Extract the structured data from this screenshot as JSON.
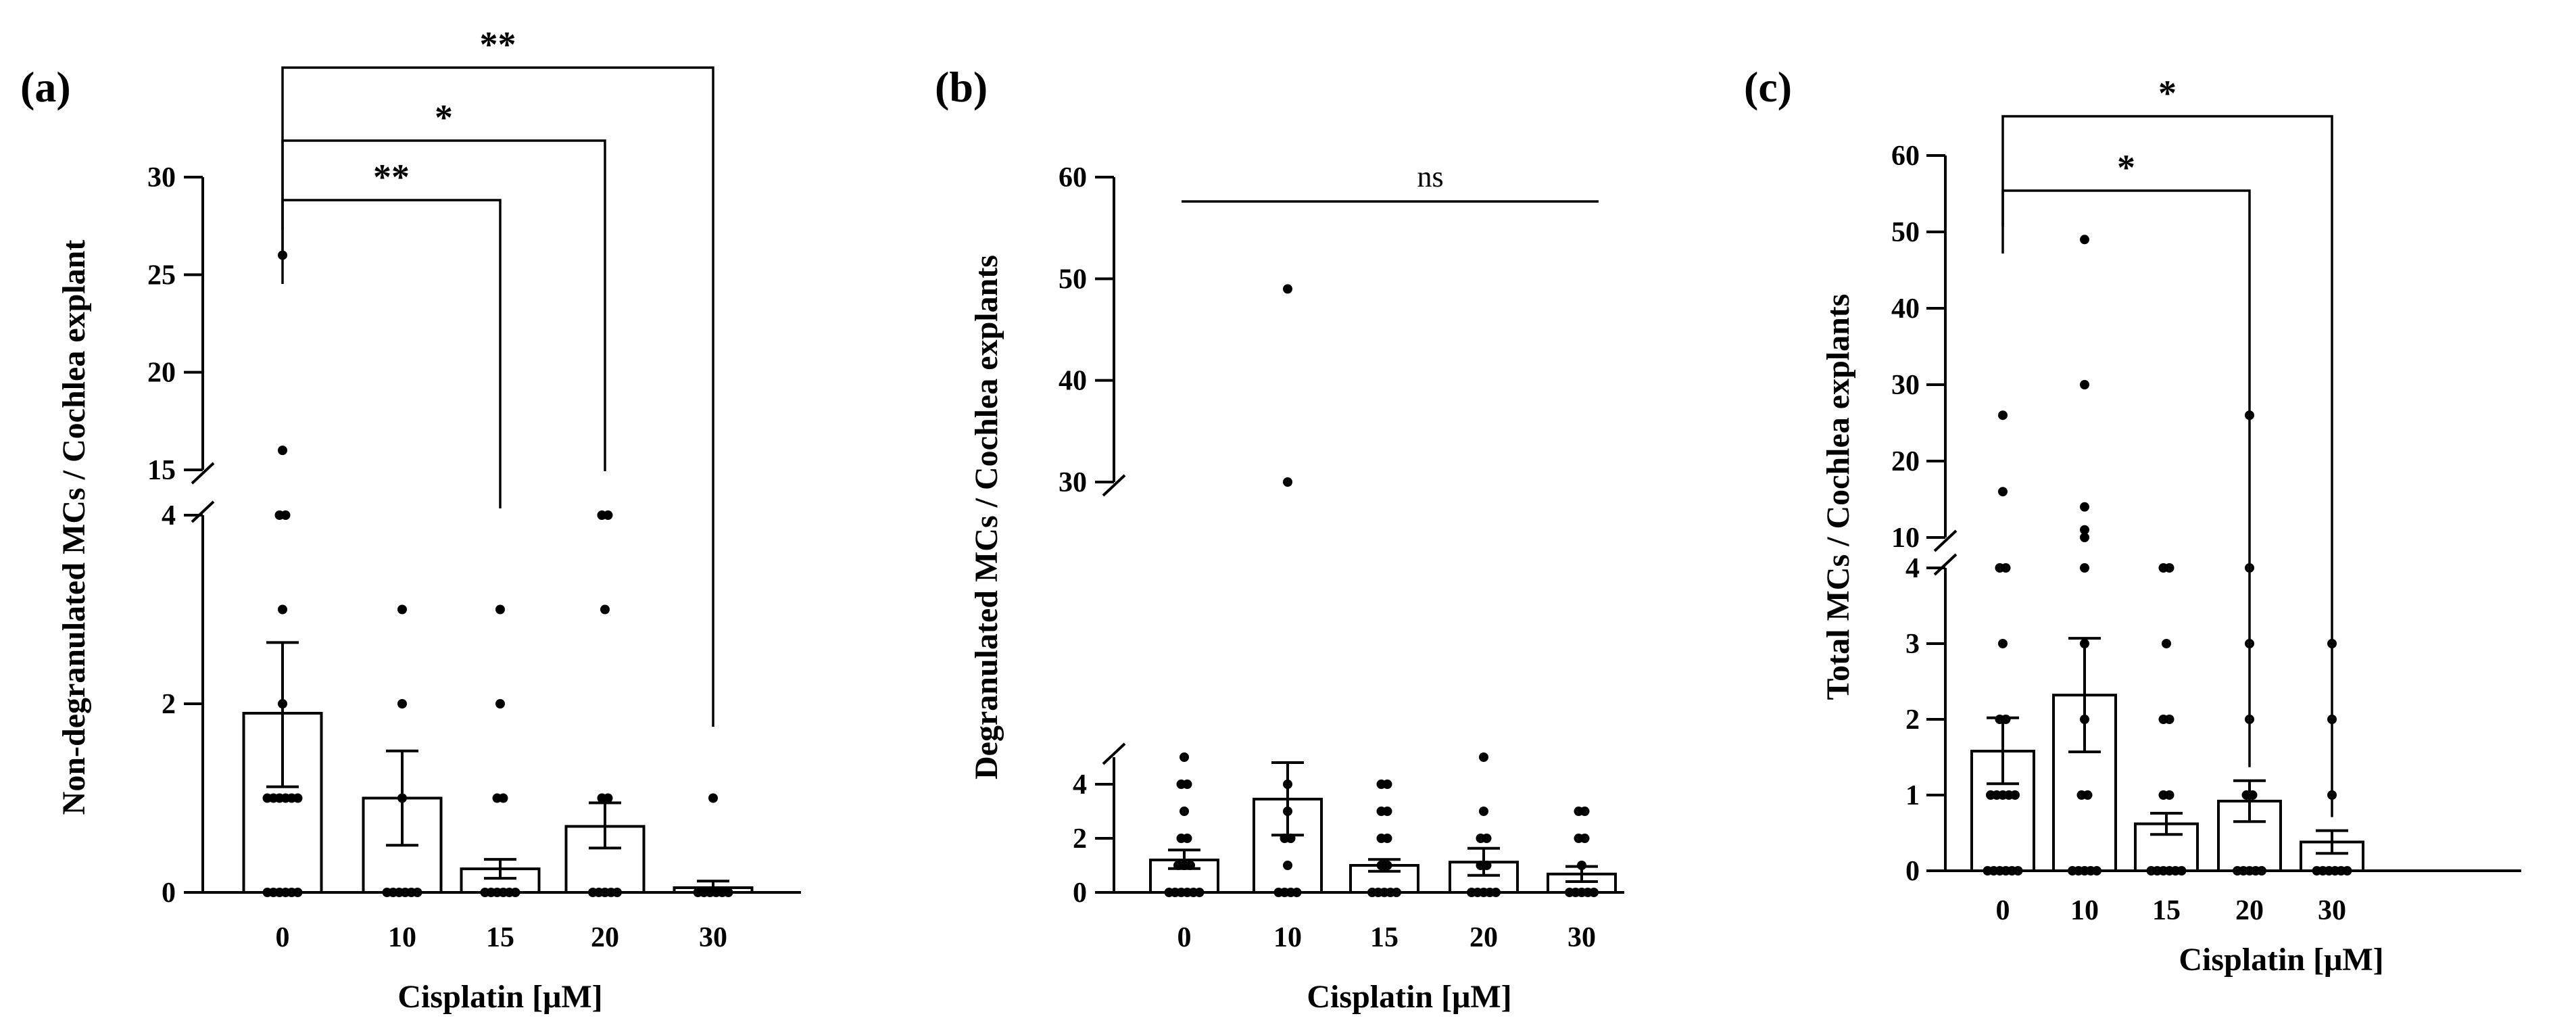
{
  "chart_data": [
    {
      "type": "bar",
      "panel_label": "(a)",
      "categories": [
        "0",
        "10",
        "15",
        "20",
        "30"
      ],
      "values": [
        1.9,
        1.0,
        0.25,
        0.7,
        0.05
      ],
      "sem_upper": [
        2.65,
        1.5,
        0.35,
        0.95,
        0.12
      ],
      "sem_lower": [
        1.12,
        0.5,
        0.15,
        0.47,
        0.0
      ],
      "points": [
        [
          0,
          0,
          0,
          0,
          0,
          0,
          1,
          1,
          1,
          1,
          1,
          1,
          2,
          3,
          4,
          4,
          16,
          26
        ],
        [
          0,
          0,
          0,
          0,
          0,
          0,
          1,
          2,
          3
        ],
        [
          0,
          0,
          0,
          0,
          0,
          0,
          1,
          1,
          2,
          3
        ],
        [
          0,
          0,
          0,
          0,
          0,
          1,
          1,
          3,
          4,
          4
        ],
        [
          0,
          0,
          0,
          0,
          0,
          0,
          1
        ]
      ],
      "xlabel": "Cisplatin [μM]",
      "ylabel": "Non-degranulated MCs / Cochlea explant",
      "y_ticks": [
        "0",
        "2",
        "4",
        "15",
        "20",
        "25",
        "30"
      ],
      "y_break": [
        4,
        15
      ],
      "ylim_low": [
        0,
        4
      ],
      "ylim_high": [
        15,
        30
      ],
      "significance": [
        {
          "from": "0",
          "to": "15",
          "label": "**"
        },
        {
          "from": "0",
          "to": "20",
          "label": "*"
        },
        {
          "from": "0",
          "to": "30",
          "label": "**"
        }
      ]
    },
    {
      "type": "bar",
      "panel_label": "(b)",
      "categories": [
        "0",
        "10",
        "15",
        "20",
        "30"
      ],
      "values": [
        1.2,
        3.45,
        1.0,
        1.12,
        0.68
      ],
      "sem_upper": [
        1.57,
        4.8,
        1.22,
        1.63,
        0.96
      ],
      "sem_lower": [
        0.88,
        2.12,
        0.78,
        0.63,
        0.4
      ],
      "points": [
        [
          0,
          0,
          0,
          0,
          0,
          0,
          1,
          1,
          1,
          2,
          2,
          3,
          4,
          4,
          5
        ],
        [
          0,
          0,
          0,
          0,
          1,
          2,
          2,
          3,
          4,
          30,
          49
        ],
        [
          0,
          0,
          0,
          0,
          0,
          1,
          1,
          2,
          2,
          3,
          3,
          4,
          4
        ],
        [
          0,
          0,
          0,
          0,
          0,
          1,
          1,
          2,
          2,
          3,
          5
        ],
        [
          0,
          0,
          0,
          0,
          0,
          1,
          2,
          2,
          3,
          3
        ]
      ],
      "xlabel": "Cisplatin [μM]",
      "ylabel": "Degranulated MCs / Cochlea explants",
      "y_ticks": [
        "0",
        "2",
        "4",
        "30",
        "40",
        "50",
        "60"
      ],
      "y_break": [
        5,
        30
      ],
      "ylim_low": [
        0,
        5
      ],
      "ylim_high": [
        30,
        60
      ],
      "significance": [
        {
          "from": "0",
          "to": "30",
          "label": "ns"
        }
      ]
    },
    {
      "type": "bar",
      "panel_label": "(c)",
      "categories": [
        "0",
        "10",
        "15",
        "20",
        "30"
      ],
      "values": [
        1.58,
        2.32,
        0.62,
        0.92,
        0.38
      ],
      "sem_upper": [
        2.02,
        3.07,
        0.76,
        1.19,
        0.53
      ],
      "sem_lower": [
        1.15,
        1.57,
        0.48,
        0.65,
        0.23
      ],
      "points": [
        [
          0,
          0,
          0,
          0,
          0,
          0,
          1,
          1,
          1,
          1,
          1,
          2,
          2,
          3,
          4,
          4,
          16,
          26
        ],
        [
          0,
          0,
          0,
          0,
          0,
          1,
          1,
          2,
          3,
          4,
          10,
          11,
          14,
          30,
          49
        ],
        [
          0,
          0,
          0,
          0,
          0,
          0,
          1,
          1,
          2,
          2,
          3,
          4,
          4
        ],
        [
          0,
          0,
          0,
          0,
          0,
          1,
          1,
          2,
          3,
          4,
          26
        ],
        [
          0,
          0,
          0,
          0,
          0,
          0,
          1,
          2,
          3
        ]
      ],
      "xlabel": "Cisplatin [μM]",
      "ylabel": "Total MCs / Cochlea explants",
      "y_ticks": [
        "0",
        "1",
        "2",
        "3",
        "4",
        "10",
        "20",
        "30",
        "40",
        "50",
        "60"
      ],
      "y_break": [
        4,
        10
      ],
      "ylim_low": [
        0,
        4
      ],
      "ylim_high": [
        10,
        60
      ],
      "significance": [
        {
          "from": "0",
          "to": "20",
          "label": "*"
        },
        {
          "from": "0",
          "to": "30",
          "label": "*"
        }
      ]
    }
  ]
}
